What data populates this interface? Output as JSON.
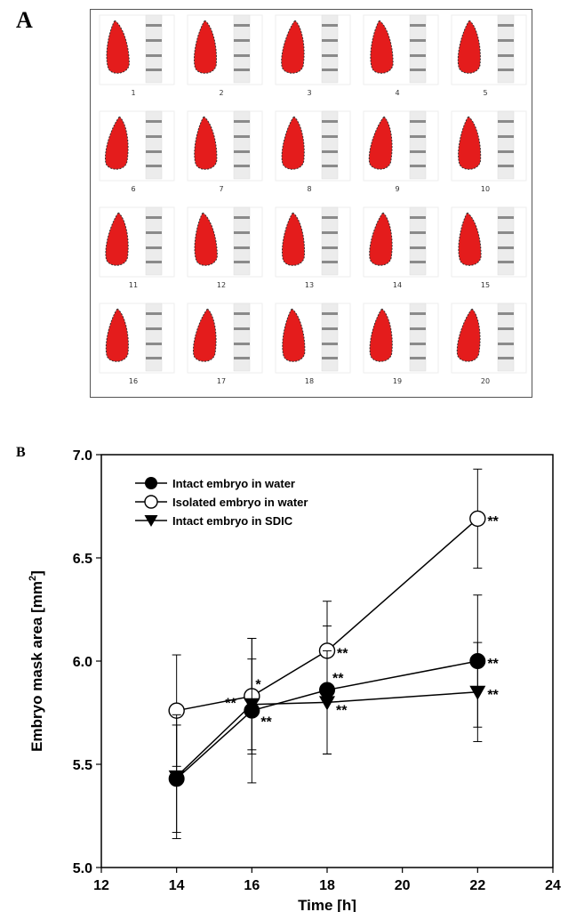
{
  "panels": {
    "a": "A",
    "b": "B"
  },
  "grid": {
    "rows": 4,
    "cols": 5,
    "cell_numbers": [
      "1",
      "2",
      "3",
      "4",
      "5",
      "6",
      "7",
      "8",
      "9",
      "10",
      "11",
      "12",
      "13",
      "14",
      "15",
      "16",
      "17",
      "18",
      "19",
      "20"
    ],
    "mask_color": "#e41c1c"
  },
  "chart_data": {
    "type": "line",
    "xlabel": "Time [h]",
    "ylabel": "Embryo mask area [mm2]",
    "ylabel_main": "Embryo mask area [mm",
    "ylabel_sup": "2",
    "ylabel_end": "]",
    "xlim": [
      12,
      24
    ],
    "ylim": [
      5.0,
      7.0
    ],
    "xticks": [
      "12",
      "14",
      "16",
      "18",
      "20",
      "22",
      "24"
    ],
    "yticks": [
      "5.0",
      "5.5",
      "6.0",
      "6.5",
      "7.0"
    ],
    "legend_position": "top-left",
    "grid": false,
    "series": [
      {
        "name": "Intact embryo in water",
        "marker": "filled-circle",
        "x": [
          14,
          16,
          18,
          22
        ],
        "y": [
          5.43,
          5.76,
          5.86,
          6.0
        ],
        "err": [
          0.26,
          0.35,
          0.31,
          0.32
        ],
        "sig": [
          "",
          "**",
          "**",
          "**"
        ]
      },
      {
        "name": "Isolated embryo in water",
        "marker": "open-circle",
        "x": [
          14,
          16,
          18,
          22
        ],
        "y": [
          5.76,
          5.83,
          6.05,
          6.69
        ],
        "err": [
          0.27,
          0.28,
          0.24,
          0.24
        ],
        "sig": [
          "",
          "*",
          "**",
          "**"
        ]
      },
      {
        "name": "Intact embryo in SDIC",
        "marker": "filled-triangle-down",
        "x": [
          14,
          16,
          18,
          22
        ],
        "y": [
          5.44,
          5.79,
          5.8,
          5.85
        ],
        "err": [
          0.3,
          0.22,
          0.25,
          0.24
        ],
        "sig": [
          "",
          "**",
          "**",
          "**"
        ]
      }
    ]
  }
}
